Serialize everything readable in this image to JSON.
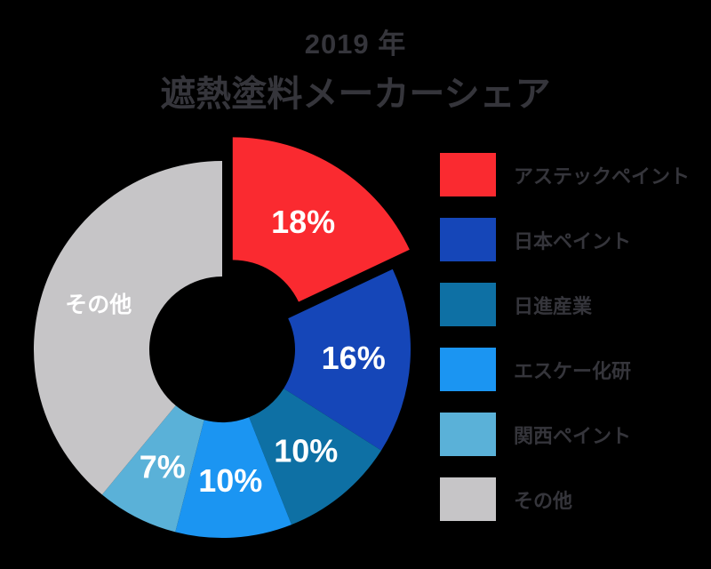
{
  "title": {
    "line1": "2019 年",
    "line2": "遮熱塗料メーカーシェア"
  },
  "colors": {
    "background": "#000000",
    "title_text": "#35353b",
    "legend_text": "#35353b",
    "slice_label_text": "#ffffff"
  },
  "chart_data": {
    "type": "pie",
    "subtype": "donut",
    "title": "2019 年 遮熱塗料メーカーシェア",
    "start_angle": "top",
    "direction": "clockwise",
    "inner_radius_ratio": 0.39,
    "total_pct": 100,
    "legend_position": "right",
    "slices": [
      {
        "name": "アステックペイント",
        "value_pct": 18,
        "label": "18%",
        "color": "#fa2a30",
        "exploded": true
      },
      {
        "name": "日本ペイント",
        "value_pct": 16,
        "label": "16%",
        "color": "#1546b8",
        "exploded": false
      },
      {
        "name": "日進産業",
        "value_pct": 10,
        "label": "10%",
        "color": "#0e70a4",
        "exploded": false
      },
      {
        "name": "エスケー化研",
        "value_pct": 10,
        "label": "10%",
        "color": "#1b95f2",
        "exploded": false
      },
      {
        "name": "関西ペイント",
        "value_pct": 7,
        "label": "7%",
        "color": "#5ab1d8",
        "exploded": false
      },
      {
        "name": "その他",
        "value_pct": 39,
        "label": "その他",
        "color": "#c6c5c7",
        "exploded": false
      }
    ]
  }
}
